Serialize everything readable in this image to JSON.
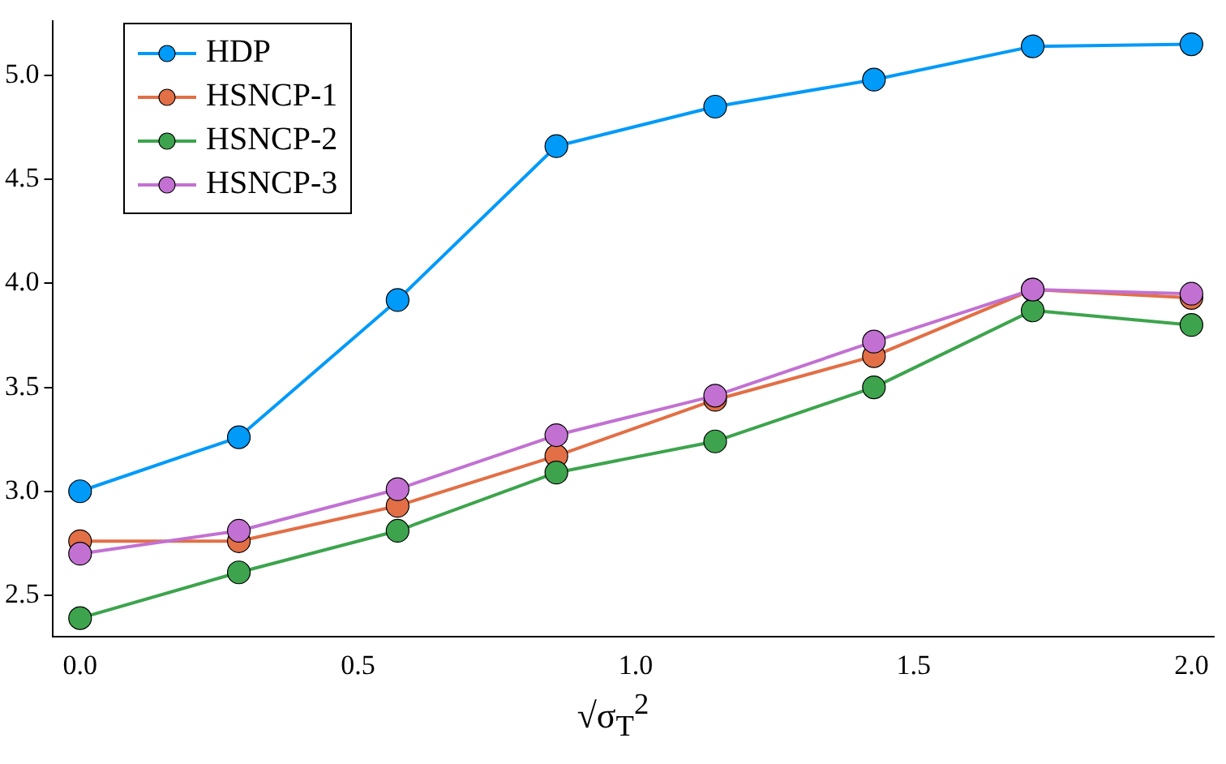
{
  "chart_data": {
    "type": "line",
    "xlabel": "√σ$_{T}$$^{2}$",
    "x": [
      0,
      0.2857,
      0.5714,
      0.8571,
      1.1429,
      1.4286,
      1.7143,
      2.0
    ],
    "series": [
      {
        "name": "HDP",
        "color": "#009af9",
        "values": [
          3.0,
          3.26,
          3.92,
          4.66,
          4.85,
          4.98,
          5.14,
          5.15
        ]
      },
      {
        "name": "HSNCP-1",
        "color": "#e26f46",
        "values": [
          2.76,
          2.76,
          2.93,
          3.17,
          3.44,
          3.65,
          3.97,
          3.93
        ]
      },
      {
        "name": "HSNCP-2",
        "color": "#3da44d",
        "values": [
          2.39,
          2.61,
          2.81,
          3.09,
          3.24,
          3.5,
          3.87,
          3.8
        ]
      },
      {
        "name": "HSNCP-3",
        "color": "#c271d2",
        "values": [
          2.7,
          2.81,
          3.01,
          3.27,
          3.46,
          3.72,
          3.97,
          3.95
        ]
      }
    ],
    "xlim": [
      -0.05,
      2.04
    ],
    "ylim": [
      2.3,
      5.26
    ],
    "xticks": [
      {
        "value": 0,
        "label": "0.0"
      },
      0.5,
      {
        "value": 1,
        "label": "1.0"
      },
      1.5,
      {
        "value": 2,
        "label": "2.0"
      }
    ],
    "yticks": [
      2.5,
      {
        "value": 3,
        "label": "3.0"
      },
      3.5,
      {
        "value": 4,
        "label": "4.0"
      },
      4.5,
      {
        "value": 5,
        "label": "5.0"
      }
    ],
    "grid": false,
    "legend": "top left",
    "marker": "circle",
    "line_style": "solid"
  }
}
